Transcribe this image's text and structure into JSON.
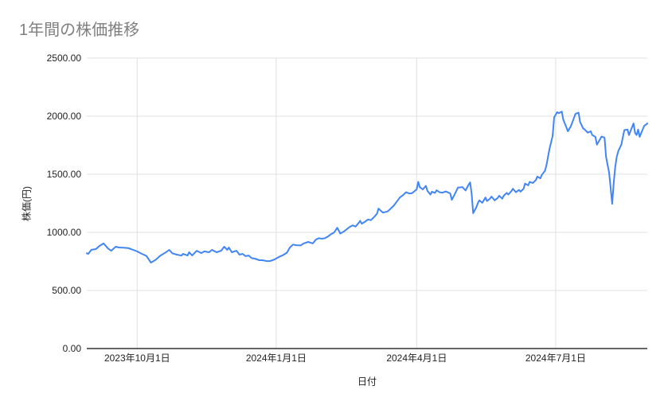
{
  "colors": {
    "background": "#ffffff",
    "grid": "#e0e0e0",
    "axis_line": "#333333",
    "tick_label": "#222222",
    "title": "#7f7f7f",
    "line": "#4285f4"
  },
  "chart_data": {
    "type": "line",
    "title": "1年間の株価推移",
    "xlabel": "日付",
    "ylabel": "株価(円)",
    "legend": "none",
    "grid": true,
    "ylim": [
      0,
      2500
    ],
    "y_ticks": [
      {
        "value": 0,
        "label": "0.00"
      },
      {
        "value": 500,
        "label": "500.00"
      },
      {
        "value": 1000,
        "label": "1000.00"
      },
      {
        "value": 1500,
        "label": "1500.00"
      },
      {
        "value": 2000,
        "label": "2000.00"
      },
      {
        "value": 2500,
        "label": "2500.00"
      }
    ],
    "x_unit": "days from left edge of plot (one year span)",
    "xlim_days": [
      0,
      367
    ],
    "x_ticks": [
      {
        "day": 33,
        "label": "2023年10月1日"
      },
      {
        "day": 124,
        "label": "2024年1月1日"
      },
      {
        "day": 216,
        "label": "2024年4月1日"
      },
      {
        "day": 307,
        "label": "2024年7月1日"
      }
    ],
    "series": [
      {
        "color": "#4285f4",
        "x_days": [
          0,
          1,
          3,
          6,
          8,
          11,
          14,
          16,
          19,
          21,
          24,
          27,
          29,
          33,
          36,
          39,
          42,
          45,
          48,
          52,
          54,
          56,
          59,
          62,
          63,
          66,
          67,
          69,
          72,
          75,
          77,
          80,
          82,
          85,
          88,
          90,
          92,
          93,
          95,
          98,
          100,
          102,
          104,
          106,
          108,
          110,
          113,
          115,
          118,
          120,
          123,
          126,
          128,
          131,
          133,
          135,
          137,
          140,
          142,
          145,
          148,
          150,
          152,
          154,
          156,
          158,
          160,
          162,
          164,
          166,
          168,
          170,
          172,
          174,
          176,
          178,
          179,
          180,
          182,
          184,
          186,
          188,
          190,
          191,
          193,
          194,
          197,
          199,
          201,
          203,
          205,
          207,
          209,
          211,
          213,
          216,
          217,
          218,
          220,
          222,
          223,
          225,
          226,
          228,
          229,
          231,
          233,
          235,
          238,
          239,
          241,
          243,
          245,
          246,
          248,
          250,
          251,
          252,
          253,
          255,
          256,
          257,
          259,
          261,
          262,
          264,
          265,
          267,
          269,
          270,
          272,
          273,
          275,
          276,
          278,
          279,
          281,
          283,
          284,
          286,
          287,
          289,
          290,
          292,
          294,
          295,
          297,
          298,
          300,
          301,
          303,
          305,
          306,
          308,
          309,
          311,
          312,
          314,
          315,
          317,
          319,
          320,
          322,
          323,
          325,
          326,
          328,
          330,
          331,
          333,
          334,
          336,
          337,
          339,
          340,
          342,
          343,
          344,
          345,
          346,
          347,
          348,
          350,
          351,
          352,
          354,
          355,
          357,
          358,
          359,
          360,
          361,
          362,
          364,
          365,
          366,
          367
        ],
        "values": [
          820,
          815,
          850,
          856,
          880,
          905,
          860,
          842,
          877,
          870,
          868,
          865,
          856,
          836,
          815,
          798,
          740,
          763,
          798,
          830,
          849,
          820,
          808,
          800,
          815,
          801,
          829,
          801,
          842,
          822,
          836,
          829,
          849,
          829,
          842,
          877,
          849,
          870,
          829,
          842,
          808,
          815,
          795,
          801,
          778,
          774,
          760,
          760,
          753,
          753,
          767,
          790,
          801,
          825,
          870,
          895,
          890,
          888,
          905,
          918,
          905,
          938,
          950,
          945,
          950,
          965,
          985,
          1000,
          1040,
          990,
          1005,
          1025,
          1045,
          1060,
          1050,
          1080,
          1100,
          1075,
          1090,
          1110,
          1105,
          1130,
          1160,
          1205,
          1180,
          1170,
          1180,
          1205,
          1230,
          1265,
          1300,
          1320,
          1345,
          1335,
          1338,
          1370,
          1435,
          1390,
          1370,
          1400,
          1358,
          1325,
          1350,
          1340,
          1362,
          1345,
          1342,
          1352,
          1335,
          1280,
          1330,
          1385,
          1388,
          1390,
          1360,
          1410,
          1430,
          1330,
          1165,
          1215,
          1250,
          1275,
          1255,
          1300,
          1270,
          1290,
          1308,
          1275,
          1295,
          1315,
          1290,
          1315,
          1340,
          1325,
          1355,
          1375,
          1345,
          1365,
          1350,
          1375,
          1420,
          1405,
          1435,
          1425,
          1450,
          1480,
          1465,
          1495,
          1530,
          1580,
          1720,
          1830,
          1990,
          2035,
          2025,
          2040,
          1970,
          1905,
          1870,
          1915,
          1985,
          2020,
          2030,
          1950,
          1895,
          1885,
          1858,
          1870,
          1838,
          1822,
          1755,
          1800,
          1825,
          1815,
          1650,
          1515,
          1380,
          1245,
          1425,
          1560,
          1650,
          1700,
          1755,
          1820,
          1880,
          1885,
          1838,
          1905,
          1938,
          1855,
          1838,
          1885,
          1822,
          1885,
          1918,
          1925,
          1938
        ]
      }
    ]
  }
}
